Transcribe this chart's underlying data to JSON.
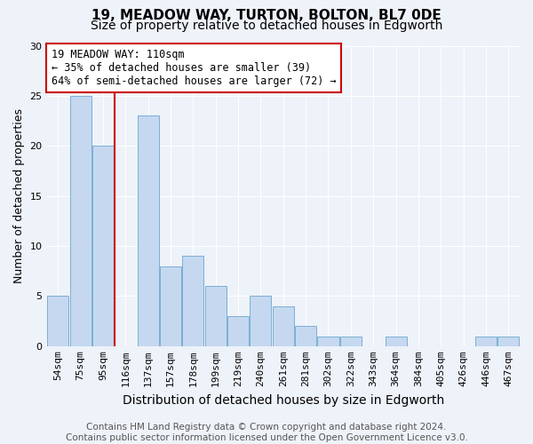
{
  "title1": "19, MEADOW WAY, TURTON, BOLTON, BL7 0DE",
  "title2": "Size of property relative to detached houses in Edgworth",
  "xlabel": "Distribution of detached houses by size in Edgworth",
  "ylabel": "Number of detached properties",
  "categories": [
    "54sqm",
    "75sqm",
    "95sqm",
    "116sqm",
    "137sqm",
    "157sqm",
    "178sqm",
    "199sqm",
    "219sqm",
    "240sqm",
    "261sqm",
    "281sqm",
    "302sqm",
    "322sqm",
    "343sqm",
    "364sqm",
    "384sqm",
    "405sqm",
    "426sqm",
    "446sqm",
    "467sqm"
  ],
  "values": [
    5,
    25,
    20,
    0,
    23,
    8,
    9,
    6,
    3,
    5,
    4,
    2,
    1,
    1,
    0,
    1,
    0,
    0,
    0,
    1,
    1
  ],
  "bar_color": "#c5d8f0",
  "bar_edge_color": "#7bafd4",
  "vline_index": 2.5,
  "vline_color": "#cc0000",
  "annotation_text": "19 MEADOW WAY: 110sqm\n← 35% of detached houses are smaller (39)\n64% of semi-detached houses are larger (72) →",
  "annotation_box_color": "#ffffff",
  "annotation_box_edge": "#cc0000",
  "ylim": [
    0,
    30
  ],
  "yticks": [
    0,
    5,
    10,
    15,
    20,
    25,
    30
  ],
  "footer": "Contains HM Land Registry data © Crown copyright and database right 2024.\nContains public sector information licensed under the Open Government Licence v3.0.",
  "title1_fontsize": 11,
  "title2_fontsize": 10,
  "xlabel_fontsize": 10,
  "ylabel_fontsize": 9,
  "tick_fontsize": 8,
  "footer_fontsize": 7.5,
  "annotation_fontsize": 8.5,
  "bg_color": "#eef2f9"
}
